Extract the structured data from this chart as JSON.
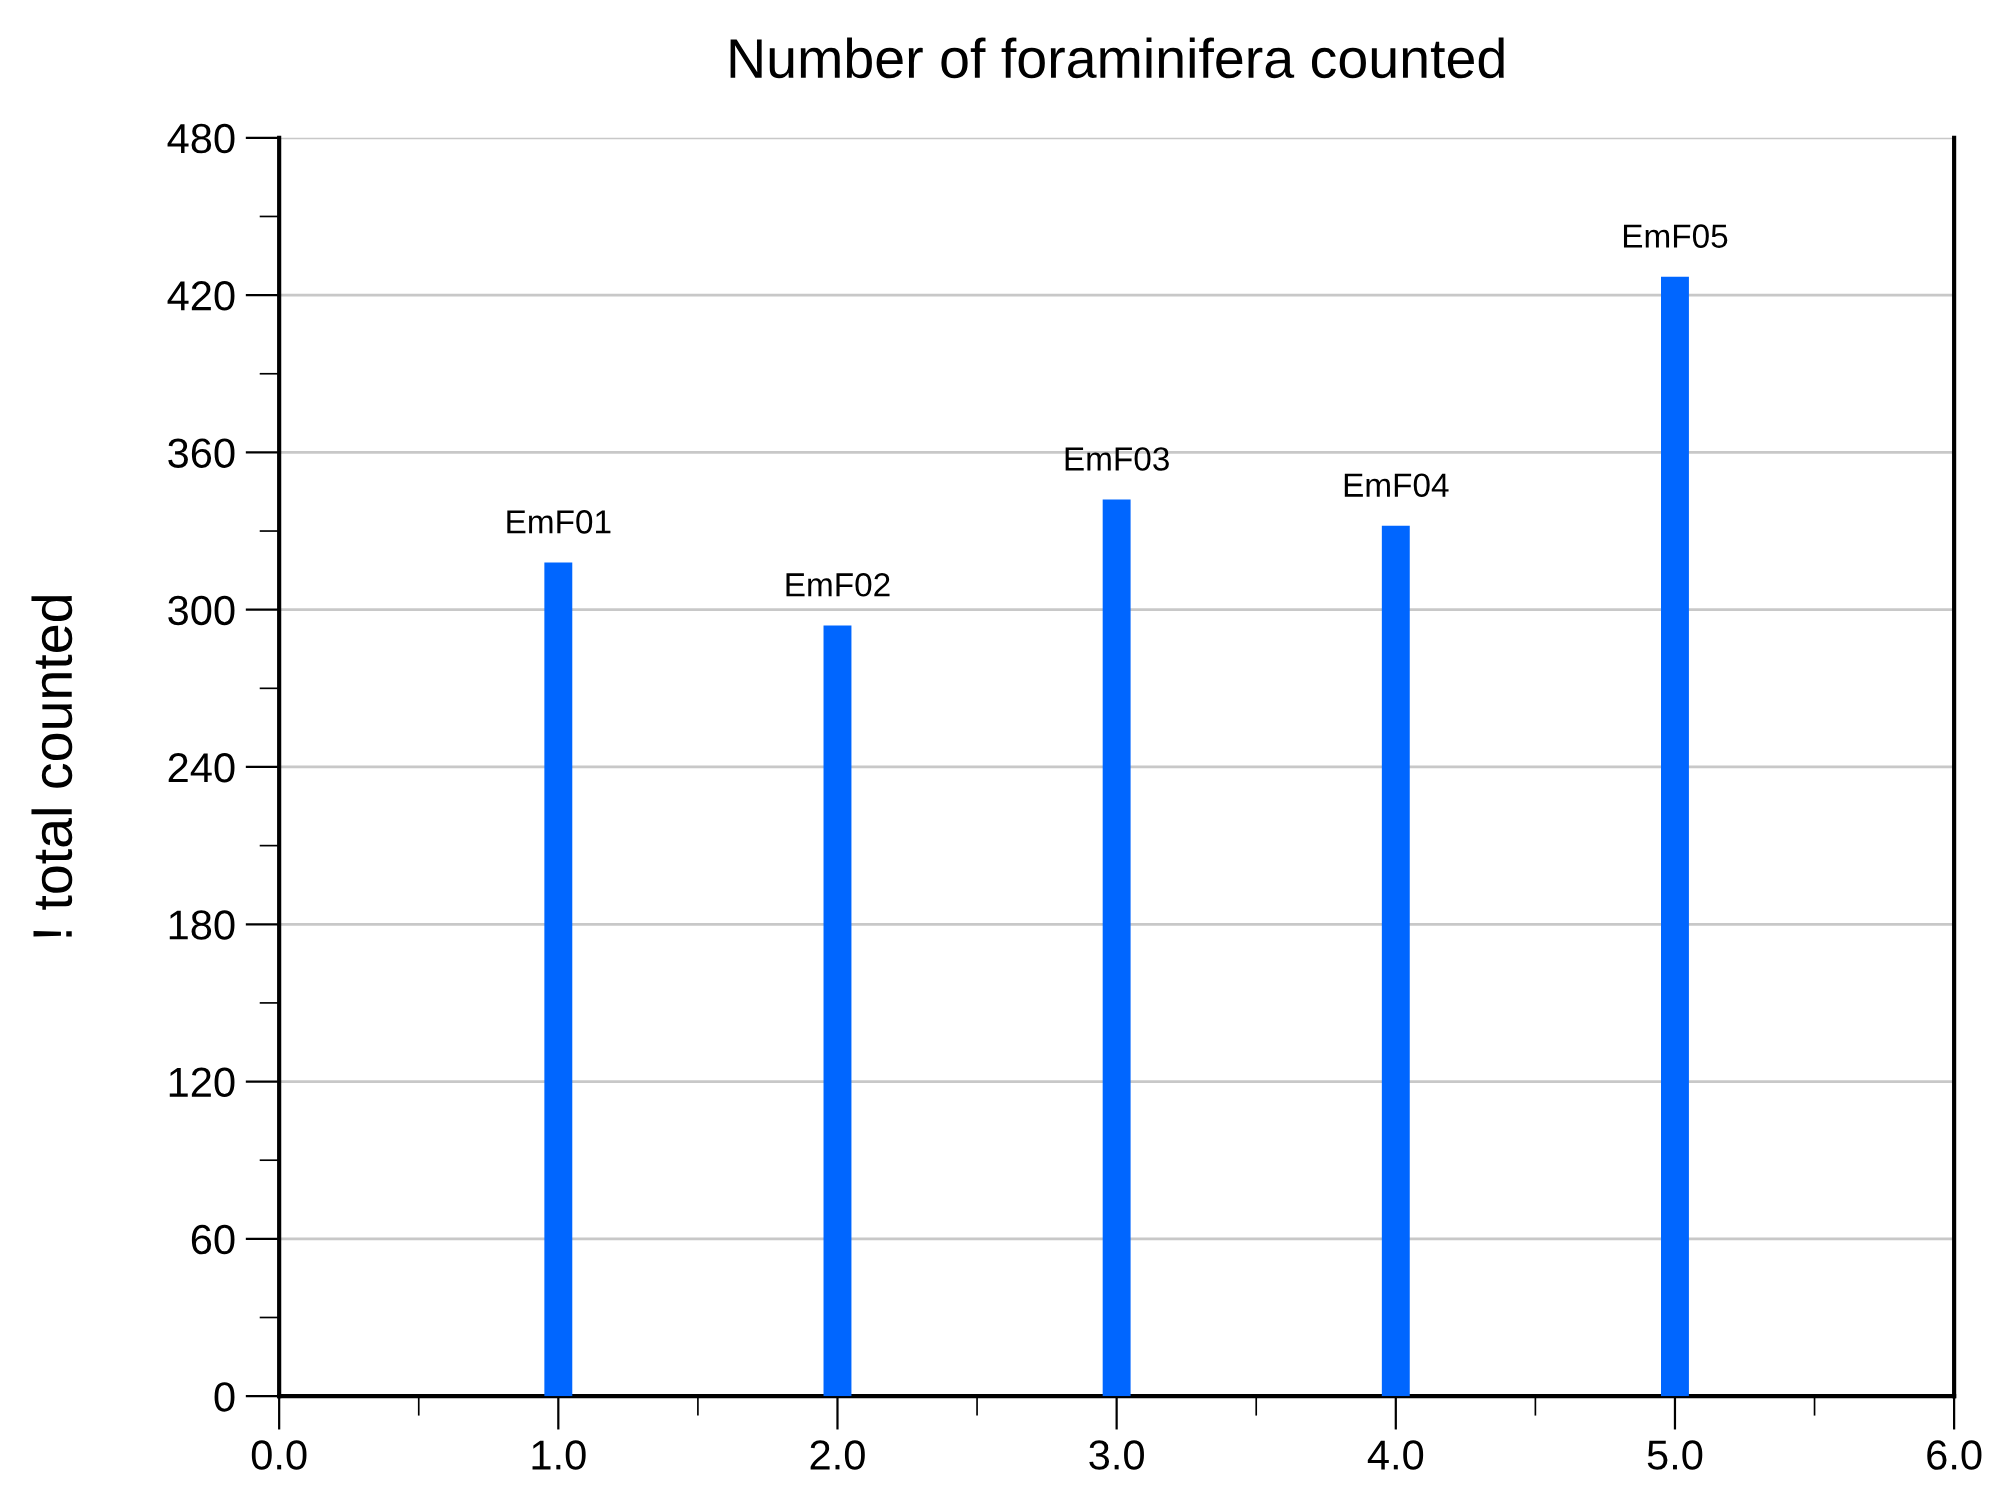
{
  "chart_data": {
    "type": "bar",
    "title": "Number of foraminifera counted",
    "ylabel": "! total counted",
    "x": [
      1,
      2,
      3,
      4,
      5
    ],
    "series": [
      {
        "color": "#0066ff",
        "values": [
          318,
          294,
          342,
          332,
          427
        ]
      }
    ],
    "annotations": [
      {
        "text": "EmF01",
        "x": 1,
        "y": 318
      },
      {
        "text": "EmF02",
        "x": 2,
        "y": 294
      },
      {
        "text": "EmF03",
        "x": 3,
        "y": 342
      },
      {
        "text": "EmF04",
        "x": 4,
        "y": 332
      },
      {
        "text": "EmF05",
        "x": 5,
        "y": 427
      }
    ],
    "xlim": [
      0,
      6
    ],
    "xticks": [
      {
        "value": 0,
        "label": "0.0"
      },
      {
        "value": 0.5,
        "label": null
      },
      {
        "value": 1,
        "label": "1.0"
      },
      {
        "value": 1.5,
        "label": null
      },
      {
        "value": 2,
        "label": "2.0"
      },
      {
        "value": 2.5,
        "label": null
      },
      {
        "value": 3,
        "label": "3.0"
      },
      {
        "value": 3.5,
        "label": null
      },
      {
        "value": 4,
        "label": "4.0"
      },
      {
        "value": 4.5,
        "label": null
      },
      {
        "value": 5,
        "label": "5.0"
      },
      {
        "value": 5.5,
        "label": null
      },
      {
        "value": 6,
        "label": "6.0"
      }
    ],
    "ylim": [
      0,
      480
    ],
    "yticks": [
      0,
      {
        "value": 30,
        "label": null
      },
      60,
      {
        "value": 90,
        "label": null
      },
      120,
      {
        "value": 150,
        "label": null
      },
      180,
      {
        "value": 210,
        "label": null
      },
      240,
      {
        "value": 270,
        "label": null
      },
      300,
      {
        "value": 330,
        "label": null
      },
      360,
      {
        "value": 390,
        "label": null
      },
      420,
      {
        "value": 450,
        "label": null
      },
      480
    ],
    "grid": "y"
  }
}
